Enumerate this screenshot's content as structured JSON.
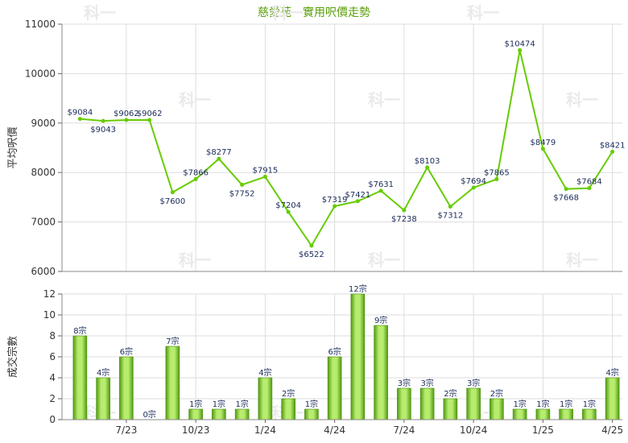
{
  "title": "慈愛苑 - 實用呎價走勢",
  "watermark": "科一",
  "colors": {
    "line": "#66cc00",
    "bar_light": "#b8ec6e",
    "bar_dark": "#4f9a10",
    "grid": "#dddddd",
    "title": "#5a9e0a"
  },
  "chart_data": [
    {
      "type": "line",
      "ylabel": "平均呎價",
      "ylim": [
        6000,
        11000
      ],
      "yticks": [
        "6000",
        "7000",
        "8000",
        "9000",
        "10000",
        "11000"
      ],
      "x": [
        0,
        1,
        2,
        3,
        4,
        5,
        6,
        7,
        8,
        9,
        10,
        11,
        12,
        13,
        14,
        15,
        16,
        17,
        18,
        19,
        20,
        21,
        22,
        23
      ],
      "values": [
        9084,
        9043,
        9062,
        9062,
        7600,
        7866,
        8277,
        7752,
        7915,
        7204,
        6522,
        7319,
        7421,
        7631,
        7238,
        8103,
        7312,
        7694,
        7865,
        10474,
        8479,
        7668,
        7684,
        8421
      ],
      "labels": [
        "$9084",
        "$9043",
        "$9062",
        "$9062",
        "$7600",
        "$7866",
        "$8277",
        "$7752",
        "$7915",
        "$7204",
        "$6522",
        "$7319",
        "$7421",
        "$7631",
        "$7238",
        "$8103",
        "$7312",
        "$7694",
        "$7865",
        "$10474",
        "$8479",
        "$7668",
        "$7684",
        "$8421"
      ]
    },
    {
      "type": "bar",
      "ylabel": "成交宗數",
      "ylim": [
        0,
        12
      ],
      "yticks": [
        "0",
        "2",
        "4",
        "6",
        "8",
        "10",
        "12"
      ],
      "values": [
        8,
        4,
        6,
        0,
        7,
        1,
        1,
        1,
        4,
        2,
        1,
        6,
        12,
        9,
        3,
        3,
        2,
        3,
        2,
        1,
        1,
        1,
        1,
        4
      ],
      "labels": [
        "8宗",
        "4宗",
        "6宗",
        "0宗",
        "7宗",
        "1宗",
        "1宗",
        "1宗",
        "4宗",
        "2宗",
        "1宗",
        "6宗",
        "12宗",
        "9宗",
        "3宗",
        "3宗",
        "2宗",
        "3宗",
        "2宗",
        "1宗",
        "1宗",
        "1宗",
        "1宗",
        "4宗"
      ],
      "xticks": [
        {
          "label": "7/23",
          "pos": 2.5
        },
        {
          "label": "10/23",
          "pos": 5.5
        },
        {
          "label": "1/24",
          "pos": 8.5
        },
        {
          "label": "4/24",
          "pos": 11.5
        },
        {
          "label": "7/24",
          "pos": 14.5
        },
        {
          "label": "10/24",
          "pos": 17.5
        },
        {
          "label": "1/25",
          "pos": 20.5
        },
        {
          "label": "4/25",
          "pos": 23.5
        }
      ]
    }
  ]
}
